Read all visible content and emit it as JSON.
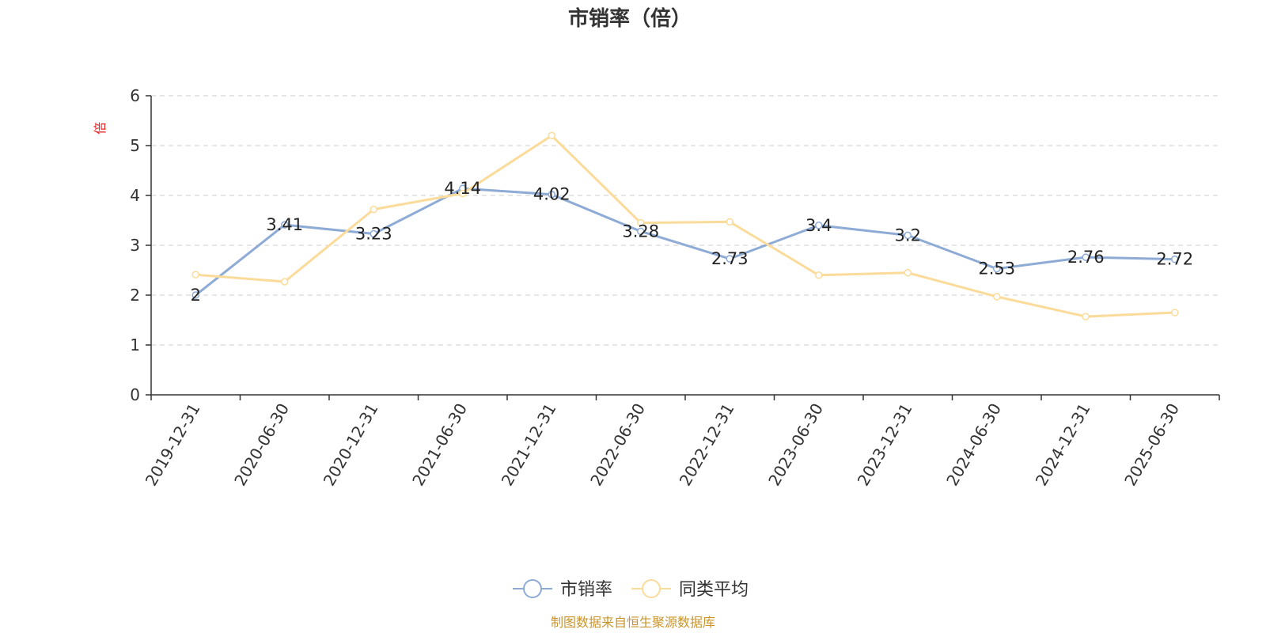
{
  "chart_data": {
    "type": "line",
    "title": "市销率（倍）",
    "ylabel": "倍",
    "ylim": [
      0,
      6
    ],
    "yticks": [
      0,
      1,
      2,
      3,
      4,
      5,
      6
    ],
    "grid": true,
    "legend_position": "bottom-center",
    "categories": [
      "2019-12-31",
      "2020-06-30",
      "2020-12-31",
      "2021-06-30",
      "2021-12-31",
      "2022-06-30",
      "2022-12-31",
      "2023-06-30",
      "2023-12-31",
      "2024-06-30",
      "2024-12-31",
      "2025-06-30"
    ],
    "series": [
      {
        "name": "市销率",
        "color": "#8eabd6",
        "show_labels": true,
        "values": [
          2,
          3.41,
          3.23,
          4.14,
          4.02,
          3.28,
          2.73,
          3.4,
          3.2,
          2.53,
          2.76,
          2.72
        ]
      },
      {
        "name": "同类平均",
        "color": "#fbdb9a",
        "show_labels": false,
        "values": [
          2.41,
          2.27,
          3.72,
          4.04,
          5.2,
          3.45,
          3.47,
          2.4,
          2.45,
          1.97,
          1.57,
          1.65
        ]
      }
    ]
  },
  "source_text": "制图数据来自恒生聚源数据库",
  "colors": {
    "unit_label": "#e02020",
    "source_text": "#c9952c",
    "grid": "#cccccc",
    "axis": "#333333"
  }
}
